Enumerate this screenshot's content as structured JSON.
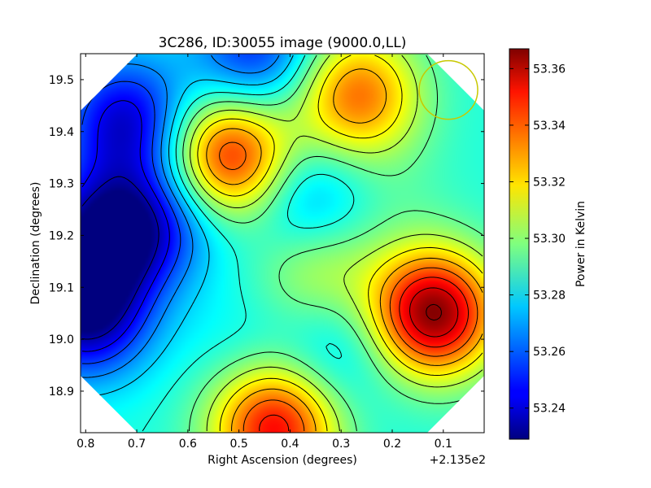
{
  "chart_data": {
    "type": "heatmap",
    "title": "3C286, ID:30055 image (9000.0,LL)",
    "xlabel": "Right Ascension (degrees)",
    "ylabel": "Declination (degrees)",
    "x_offset_label": "+2.135e2",
    "x_reversed": true,
    "xlim": [
      0.81,
      0.02
    ],
    "ylim": [
      18.82,
      19.55
    ],
    "xticks": [
      0.8,
      0.7,
      0.6,
      0.5,
      0.4,
      0.3,
      0.2,
      0.1
    ],
    "xtick_labels": [
      "0.8",
      "0.7",
      "0.6",
      "0.5",
      "0.4",
      "0.3",
      "0.2",
      "0.1"
    ],
    "yticks": [
      18.9,
      19.0,
      19.1,
      19.2,
      19.3,
      19.4,
      19.5
    ],
    "ytick_labels": [
      "18.9",
      "19.0",
      "19.1",
      "19.2",
      "19.3",
      "19.4",
      "19.5"
    ],
    "colormap": "jet",
    "colorbar": {
      "label": "Power in Kelvin",
      "range": [
        53.229,
        53.367
      ],
      "ticks": [
        53.24,
        53.26,
        53.28,
        53.3,
        53.32,
        53.34,
        53.36
      ],
      "tick_labels": [
        "53.24",
        "53.26",
        "53.28",
        "53.30",
        "53.32",
        "53.34",
        "53.36"
      ]
    },
    "contours": true,
    "features": [
      {
        "x": 0.76,
        "y": 19.2,
        "value": 53.23
      },
      {
        "x": 0.8,
        "y": 19.05,
        "value": 53.23
      },
      {
        "x": 0.72,
        "y": 19.42,
        "value": 53.24
      },
      {
        "x": 0.47,
        "y": 19.55,
        "value": 53.25
      },
      {
        "x": 0.64,
        "y": 19.24,
        "value": 53.26
      },
      {
        "x": 0.37,
        "y": 19.26,
        "value": 53.26
      },
      {
        "x": 0.3,
        "y": 18.98,
        "value": 53.27
      },
      {
        "x": 0.52,
        "y": 19.35,
        "value": 53.35
      },
      {
        "x": 0.27,
        "y": 19.47,
        "value": 53.335
      },
      {
        "x": 0.2,
        "y": 19.28,
        "value": 53.29
      },
      {
        "x": 0.12,
        "y": 19.05,
        "value": 53.367
      },
      {
        "x": 0.43,
        "y": 18.83,
        "value": 53.35
      },
      {
        "x": 0.35,
        "y": 19.14,
        "value": 53.31
      },
      {
        "x": 0.5,
        "y": 19.0,
        "value": 53.28
      }
    ],
    "beam_circle": {
      "x": 0.09,
      "y": 19.48,
      "color": "#c8c800"
    }
  }
}
